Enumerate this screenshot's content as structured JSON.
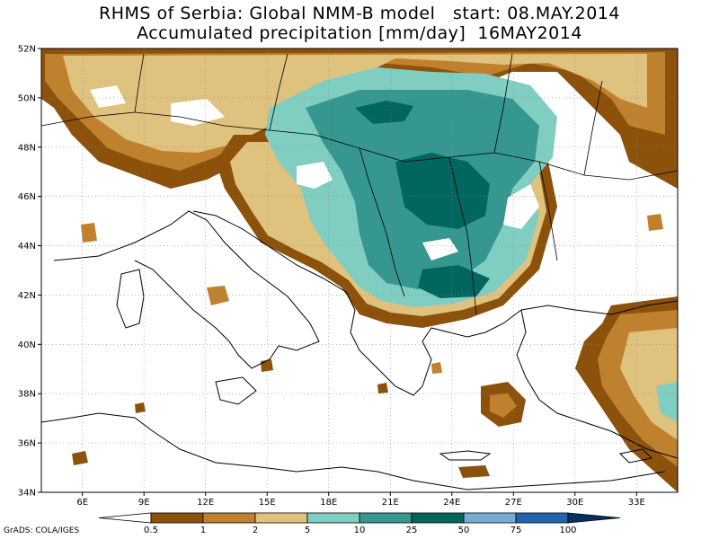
{
  "title_line1": "RHMS of Serbia: Global NMM-B model   start: 08.MAY.2014",
  "title_line2": "Accumulated precipitation [mm/day]  16MAY2014",
  "map": {
    "lon_range": [
      4,
      35
    ],
    "lat_range": [
      34,
      52
    ],
    "lon_ticks": [
      "6E",
      "9E",
      "12E",
      "15E",
      "18E",
      "21E",
      "24E",
      "27E",
      "30E",
      "33E"
    ],
    "lat_ticks": [
      "34N",
      "36N",
      "38N",
      "40N",
      "42N",
      "44N",
      "46N",
      "48N",
      "50N",
      "52N"
    ]
  },
  "legend": {
    "ticks": [
      "0.5",
      "1",
      "2",
      "5",
      "10",
      "25",
      "50",
      "75",
      "100"
    ],
    "colors": [
      "#ffffff",
      "#8c510a",
      "#bf812d",
      "#dfc27d",
      "#80cdc1",
      "#35978f",
      "#01665e",
      "#74add1",
      "#2166ac",
      "#053061"
    ]
  },
  "credit": "GrADS: COLA/IGES"
}
